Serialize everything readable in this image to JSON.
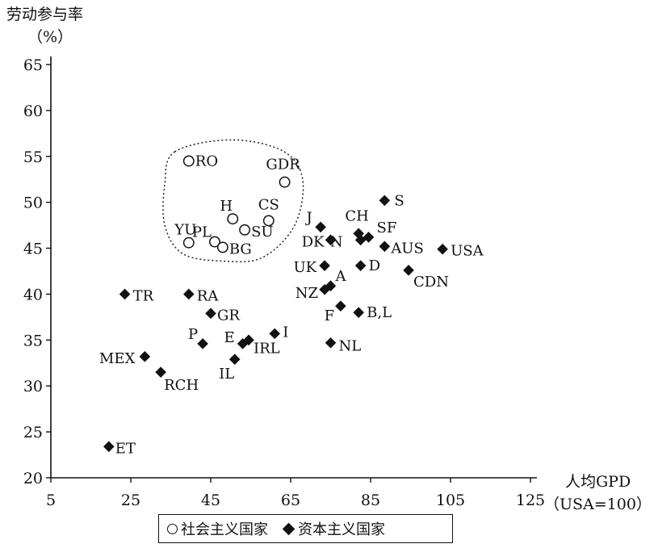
{
  "chart_data": {
    "type": "scatter",
    "ylabel": "劳动参与率",
    "ylabel_unit": "（%）",
    "xlabel": "人均GPD",
    "xlabel_unit": "（USA=100）",
    "xlim": [
      5,
      125
    ],
    "ylim": [
      20,
      65
    ],
    "x_ticks": [
      5,
      25,
      45,
      65,
      85,
      105,
      125
    ],
    "y_ticks": [
      20,
      25,
      30,
      35,
      40,
      45,
      50,
      55,
      60,
      65
    ],
    "grid": false,
    "legend": [
      {
        "label": "社会主义国家",
        "marker": "open-circle"
      },
      {
        "label": "资本主义国家",
        "marker": "filled-diamond"
      }
    ],
    "series": [
      {
        "name": "社会主义国家",
        "marker": "open-circle",
        "points": [
          {
            "label": "RO",
            "x": 39.5,
            "y": 54.5
          },
          {
            "label": "GDR",
            "x": 63.5,
            "y": 52.2
          },
          {
            "label": "H",
            "x": 50.5,
            "y": 48.2
          },
          {
            "label": "CS",
            "x": 59.5,
            "y": 48.0
          },
          {
            "label": "SU",
            "x": 53.5,
            "y": 47.0
          },
          {
            "label": "PL",
            "x": 46.0,
            "y": 45.7
          },
          {
            "label": "YU",
            "x": 39.5,
            "y": 45.6
          },
          {
            "label": "BG",
            "x": 48.0,
            "y": 45.1
          }
        ]
      },
      {
        "name": "资本主义国家",
        "marker": "filled-diamond",
        "points": [
          {
            "label": "S",
            "x": 88.5,
            "y": 50.2
          },
          {
            "label": "J",
            "x": 72.5,
            "y": 47.3
          },
          {
            "label": "CH",
            "x": 82.0,
            "y": 46.6
          },
          {
            "label": "SF",
            "x": 84.5,
            "y": 46.2
          },
          {
            "label": "DK",
            "x": 75.0,
            "y": 45.9
          },
          {
            "label": "N",
            "x": 82.5,
            "y": 45.9
          },
          {
            "label": "AUS",
            "x": 88.5,
            "y": 45.2
          },
          {
            "label": "USA",
            "x": 103.0,
            "y": 44.9
          },
          {
            "label": "UK",
            "x": 73.5,
            "y": 43.1
          },
          {
            "label": "D",
            "x": 82.5,
            "y": 43.1
          },
          {
            "label": "CDN",
            "x": 94.5,
            "y": 42.6
          },
          {
            "label": "A",
            "x": 75.0,
            "y": 40.9
          },
          {
            "label": "NZ",
            "x": 73.5,
            "y": 40.5
          },
          {
            "label": "F",
            "x": 77.5,
            "y": 38.7
          },
          {
            "label": "B,L",
            "x": 82.0,
            "y": 38.0
          },
          {
            "label": "TR",
            "x": 23.5,
            "y": 40.0
          },
          {
            "label": "RA",
            "x": 39.5,
            "y": 40.0
          },
          {
            "label": "GR",
            "x": 45.0,
            "y": 37.9
          },
          {
            "label": "I",
            "x": 61.0,
            "y": 35.7
          },
          {
            "label": "IRL",
            "x": 54.5,
            "y": 35.0
          },
          {
            "label": "E",
            "x": 53.0,
            "y": 34.6
          },
          {
            "label": "P",
            "x": 43.0,
            "y": 34.6
          },
          {
            "label": "NL",
            "x": 75.0,
            "y": 34.7
          },
          {
            "label": "IL",
            "x": 51.0,
            "y": 32.9
          },
          {
            "label": "MEX",
            "x": 28.5,
            "y": 33.2
          },
          {
            "label": "RCH",
            "x": 32.5,
            "y": 31.5
          },
          {
            "label": "ET",
            "x": 19.5,
            "y": 23.4
          }
        ]
      }
    ]
  }
}
